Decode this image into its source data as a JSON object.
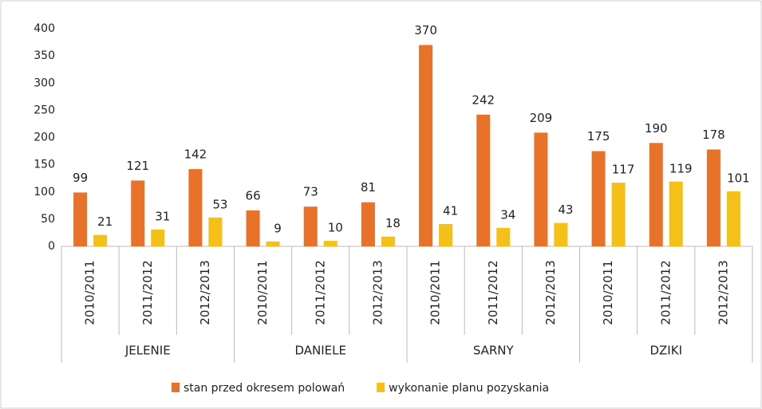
{
  "chart_data": {
    "type": "bar",
    "groups": [
      {
        "name": "JELENIE",
        "categories": [
          "2010/2011",
          "2011/2012",
          "2012/2013"
        ]
      },
      {
        "name": "DANIELE",
        "categories": [
          "2010/2011",
          "2011/2012",
          "2012/2013"
        ]
      },
      {
        "name": "SARNY",
        "categories": [
          "2010/2011",
          "2011/2012",
          "2012/2013"
        ]
      },
      {
        "name": "DZIKI",
        "categories": [
          "2010/2011",
          "2011/2012",
          "2012/2013"
        ]
      }
    ],
    "series": [
      {
        "name": "stan przed okresem polowań",
        "color": "#e8722a",
        "values": [
          99,
          121,
          142,
          66,
          73,
          81,
          370,
          242,
          209,
          175,
          190,
          178
        ]
      },
      {
        "name": "wykonanie planu pozyskania",
        "color": "#f5c018",
        "values": [
          21,
          31,
          53,
          9,
          10,
          18,
          41,
          34,
          43,
          117,
          119,
          101
        ]
      }
    ],
    "ylim": [
      0,
      400
    ],
    "yticks": [
      0,
      50,
      100,
      150,
      200,
      250,
      300,
      350,
      400
    ],
    "grid": false,
    "legend": "bottom"
  }
}
